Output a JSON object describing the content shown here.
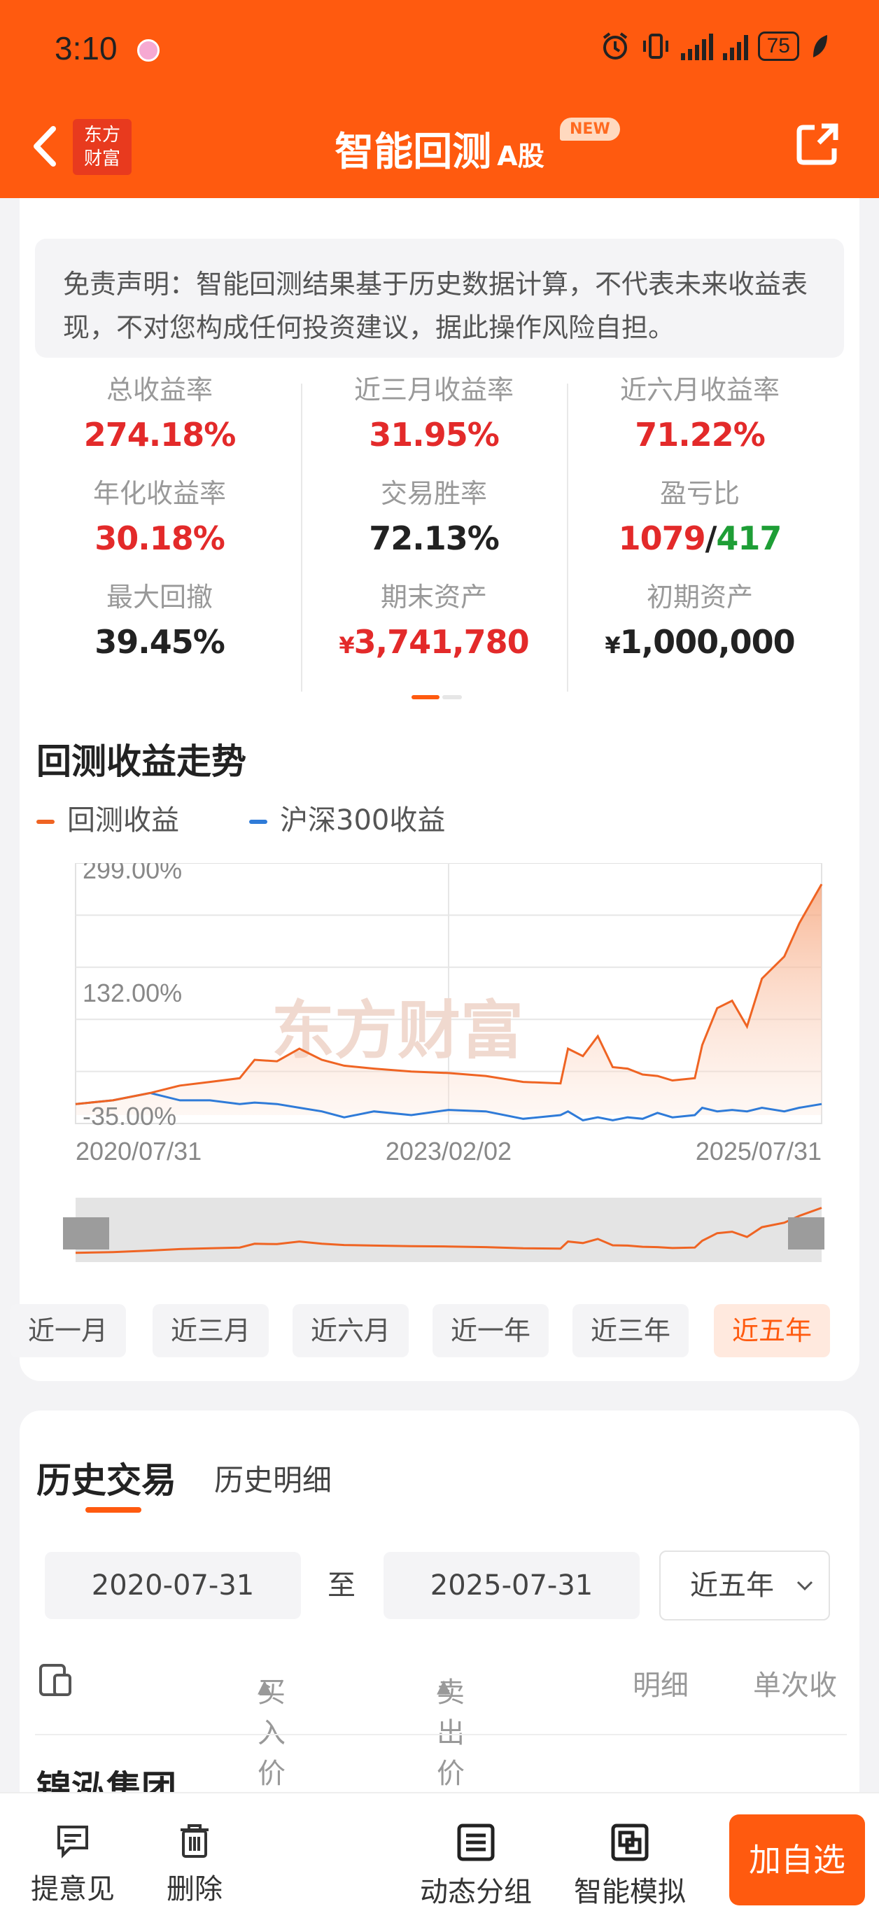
{
  "status_bar": {
    "time": "3:10",
    "battery": "75"
  },
  "header": {
    "title": "智能回测",
    "market": "A股",
    "new_badge": "NEW",
    "logo_line1": "东方",
    "logo_line2": "财富"
  },
  "disclaimer": "免责声明：智能回测结果基于历史数据计算，不代表未来收益表现，不对您构成任何投资建议，据此操作风险自担。",
  "metrics": [
    {
      "label": "总收益率",
      "value": "274.18%"
    },
    {
      "label": "近三月收益率",
      "value": "31.95%"
    },
    {
      "label": "近六月收益率",
      "value": "71.22%"
    },
    {
      "label": "年化收益率",
      "value": "30.18%"
    },
    {
      "label": "交易胜率",
      "value": "72.13%"
    },
    {
      "label": "盈亏比",
      "win": "1079",
      "sep": "/",
      "loss": "417"
    },
    {
      "label": "最大回撤",
      "value": "39.45%"
    },
    {
      "label": "期末资产",
      "currency": "¥",
      "value": "3,741,780"
    },
    {
      "label": "初期资产",
      "currency": "¥",
      "value": "1,000,000"
    }
  ],
  "chart_section": {
    "title": "回测收益走势"
  },
  "chart_data": {
    "type": "area",
    "series": [
      {
        "name": "回测收益",
        "color": "#ef6423"
      },
      {
        "name": "沪深300收益",
        "color": "#2f7bd8"
      }
    ],
    "y_tick_labels": [
      "299.00%",
      "132.00%",
      "-35.00%"
    ],
    "ylim": [
      -35,
      299
    ],
    "x_tick_labels": [
      "2020/07/31",
      "2023/02/02",
      "2025/07/31"
    ],
    "watermark": "东方财富",
    "t": [
      0,
      0.05,
      0.1,
      0.14,
      0.18,
      0.22,
      0.24,
      0.27,
      0.3,
      0.33,
      0.36,
      0.4,
      0.45,
      0.5,
      0.55,
      0.6,
      0.65,
      0.66,
      0.68,
      0.7,
      0.72,
      0.74,
      0.76,
      0.78,
      0.8,
      0.83,
      0.84,
      0.86,
      0.88,
      0.9,
      0.92,
      0.95,
      0.97,
      1.0
    ],
    "backtest": [
      -20,
      -15,
      -5,
      5,
      10,
      15,
      40,
      38,
      55,
      40,
      32,
      28,
      24,
      22,
      18,
      10,
      8,
      55,
      45,
      72,
      30,
      28,
      20,
      18,
      12,
      15,
      60,
      110,
      120,
      85,
      150,
      180,
      225,
      278
    ],
    "csi300": [
      -20,
      -15,
      -5,
      -15,
      -15,
      -20,
      -18,
      -20,
      -25,
      -30,
      -38,
      -30,
      -35,
      -28,
      -30,
      -40,
      -35,
      -30,
      -42,
      -38,
      -42,
      -38,
      -40,
      -32,
      -38,
      -35,
      -25,
      -30,
      -28,
      -30,
      -25,
      -30,
      -25,
      -20
    ]
  },
  "periods": [
    "近一月",
    "近三月",
    "近六月",
    "近一年",
    "近三年",
    "近五年"
  ],
  "active_period": "近五年",
  "history": {
    "tab_active": "历史交易",
    "tab_other": "历史明细",
    "start_date": "2020-07-31",
    "to": "至",
    "end_date": "2025-07-31",
    "range_select": "近五年",
    "columns": [
      "买入价(元)",
      "卖出价(元)",
      "明细",
      "单次收"
    ],
    "first_row_name": "锦泓集团"
  },
  "bottom_bar": {
    "feedback": "提意见",
    "delete": "删除",
    "group": "动态分组",
    "simulate": "智能模拟",
    "add_watchlist": "加自选"
  }
}
